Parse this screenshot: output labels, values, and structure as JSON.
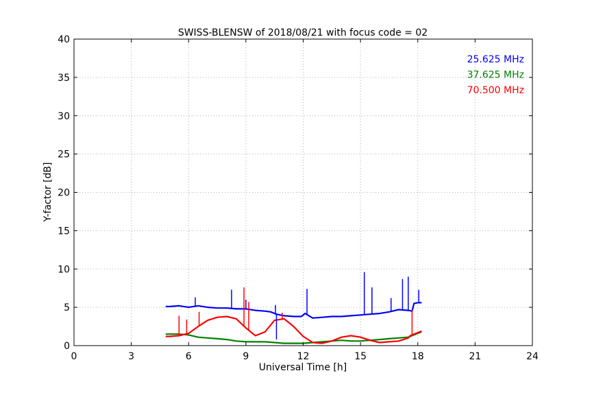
{
  "chart_data": {
    "type": "line",
    "title": "SWISS-BLENSW of 2018/08/21 with focus code = 02",
    "xlabel": "Universal Time [h]",
    "ylabel": "Y-factor [dB]",
    "xlim": [
      0,
      24
    ],
    "ylim": [
      0,
      40
    ],
    "xticks": [
      0,
      3,
      6,
      9,
      12,
      15,
      18,
      21,
      24
    ],
    "yticks": [
      0,
      5,
      10,
      15,
      20,
      25,
      30,
      35,
      40
    ],
    "grid": true,
    "legend_position": "top-right",
    "series": [
      {
        "name": "25.625 MHz",
        "color": "#0000ff",
        "x": [
          4.8,
          5.0,
          5.5,
          6.0,
          6.5,
          7.0,
          7.5,
          8.0,
          8.5,
          9.0,
          9.5,
          10.0,
          10.3,
          10.6,
          10.8,
          11.0,
          11.5,
          11.9,
          12.1,
          12.5,
          13.0,
          13.5,
          14.0,
          14.5,
          15.0,
          15.5,
          16.0,
          16.5,
          17.0,
          17.5,
          17.7,
          17.8,
          18.0,
          18.2
        ],
        "y": [
          5.1,
          5.1,
          5.2,
          5.0,
          5.2,
          5.0,
          4.9,
          4.9,
          4.8,
          4.8,
          4.6,
          4.5,
          4.4,
          4.1,
          4.0,
          3.9,
          3.8,
          3.8,
          4.2,
          3.6,
          3.7,
          3.8,
          3.8,
          3.9,
          4.0,
          4.1,
          4.2,
          4.4,
          4.7,
          4.6,
          4.5,
          5.5,
          5.6,
          5.6
        ]
      },
      {
        "name": "37.625 MHz",
        "color": "#008000",
        "x": [
          4.8,
          5.0,
          5.5,
          6.0,
          6.5,
          7.0,
          7.5,
          8.0,
          8.5,
          9.0,
          9.5,
          10.0,
          10.5,
          11.0,
          11.5,
          12.0,
          12.5,
          13.0,
          13.5,
          14.0,
          14.5,
          15.0,
          15.5,
          16.0,
          16.5,
          17.0,
          17.5,
          18.0,
          18.2
        ],
        "y": [
          1.5,
          1.5,
          1.5,
          1.4,
          1.1,
          1.0,
          0.9,
          0.8,
          0.6,
          0.5,
          0.5,
          0.5,
          0.4,
          0.3,
          0.3,
          0.3,
          0.4,
          0.5,
          0.6,
          0.7,
          0.6,
          0.6,
          0.7,
          0.8,
          0.9,
          1.0,
          1.1,
          1.6,
          1.8
        ]
      },
      {
        "name": "70.500 MHz",
        "color": "#ff0000",
        "x": [
          4.8,
          5.0,
          5.5,
          6.0,
          6.5,
          7.0,
          7.5,
          8.0,
          8.5,
          9.0,
          9.5,
          10.0,
          10.5,
          11.0,
          11.5,
          12.0,
          12.5,
          13.0,
          13.5,
          14.0,
          14.5,
          15.0,
          15.5,
          16.0,
          16.5,
          17.0,
          17.5,
          17.6,
          18.0,
          18.2
        ],
        "y": [
          1.2,
          1.2,
          1.3,
          1.6,
          2.5,
          3.3,
          3.7,
          3.8,
          3.5,
          2.3,
          1.3,
          1.8,
          3.3,
          3.5,
          2.5,
          1.2,
          0.4,
          0.3,
          0.6,
          1.1,
          1.3,
          1.1,
          0.7,
          0.4,
          0.5,
          0.6,
          1.0,
          1.3,
          1.7,
          1.9
        ]
      }
    ],
    "spikes": [
      {
        "series": 0,
        "x": 6.35,
        "y": 6.3
      },
      {
        "series": 0,
        "x": 8.25,
        "y": 7.3
      },
      {
        "series": 0,
        "x": 9.0,
        "y": 6.0
      },
      {
        "series": 0,
        "x": 10.55,
        "y": 5.3
      },
      {
        "series": 0,
        "x": 12.2,
        "y": 7.4
      },
      {
        "series": 0,
        "x": 15.2,
        "y": 9.6
      },
      {
        "series": 0,
        "x": 15.6,
        "y": 7.6
      },
      {
        "series": 0,
        "x": 16.6,
        "y": 6.2
      },
      {
        "series": 0,
        "x": 17.2,
        "y": 8.7
      },
      {
        "series": 0,
        "x": 17.5,
        "y": 9.0
      },
      {
        "series": 0,
        "x": 18.05,
        "y": 7.3
      },
      {
        "series": 0,
        "x": 10.6,
        "y": 0.8
      },
      {
        "series": 2,
        "x": 5.5,
        "y": 3.9
      },
      {
        "series": 2,
        "x": 5.9,
        "y": 3.4
      },
      {
        "series": 2,
        "x": 6.55,
        "y": 4.4
      },
      {
        "series": 2,
        "x": 8.9,
        "y": 7.6
      },
      {
        "series": 2,
        "x": 9.15,
        "y": 5.7
      },
      {
        "series": 2,
        "x": 10.9,
        "y": 4.3
      },
      {
        "series": 2,
        "x": 17.7,
        "y": 4.7
      }
    ]
  }
}
